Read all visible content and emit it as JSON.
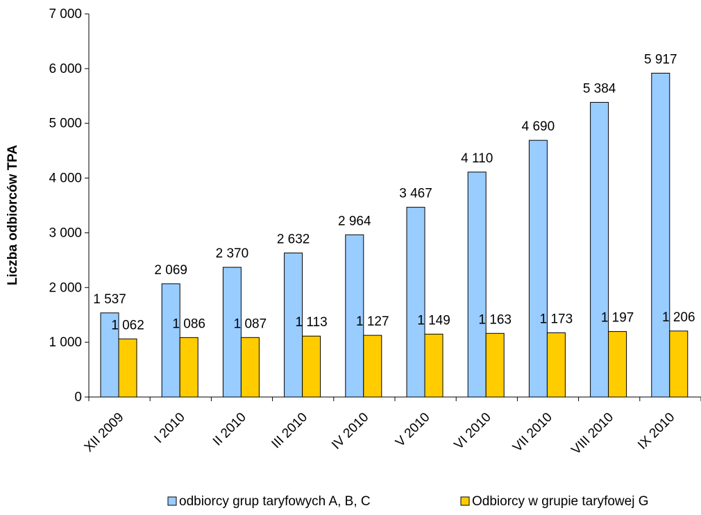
{
  "chart_data": {
    "type": "bar",
    "title": "",
    "xlabel": "",
    "ylabel": "Liczba odbiorców TPA",
    "ylim": [
      0,
      7000
    ],
    "yticks": [
      0,
      1000,
      2000,
      3000,
      4000,
      5000,
      6000,
      7000
    ],
    "ytick_labels": [
      "0",
      "1 000",
      "2 000",
      "3 000",
      "4 000",
      "5 000",
      "6 000",
      "7 000"
    ],
    "grid": false,
    "legend_position": "bottom",
    "categories": [
      "XII 2009",
      "I 2010",
      "II 2010",
      "III 2010",
      "IV 2010",
      "V 2010",
      "VI 2010",
      "VII 2010",
      "VIII 2010",
      "IX 2010"
    ],
    "series": [
      {
        "name": "odbiorcy grup taryfowych A, B, C",
        "color": "#99CCFF",
        "values": [
          1537,
          2069,
          2370,
          2632,
          2964,
          3467,
          4110,
          4690,
          5384,
          5917
        ],
        "labels": [
          "1 537",
          "2 069",
          "2 370",
          "2 632",
          "2 964",
          "3 467",
          "4 110",
          "4 690",
          "5 384",
          "5 917"
        ]
      },
      {
        "name": "Odbiorcy w grupie taryfowej G",
        "color": "#FFCC00",
        "values": [
          1062,
          1086,
          1087,
          1113,
          1127,
          1149,
          1163,
          1173,
          1197,
          1206
        ],
        "labels": [
          "1 062",
          "1 086",
          "1 087",
          "1 113",
          "1 127",
          "1 149",
          "1 163",
          "1 173",
          "1 197",
          "1 206"
        ]
      }
    ]
  }
}
